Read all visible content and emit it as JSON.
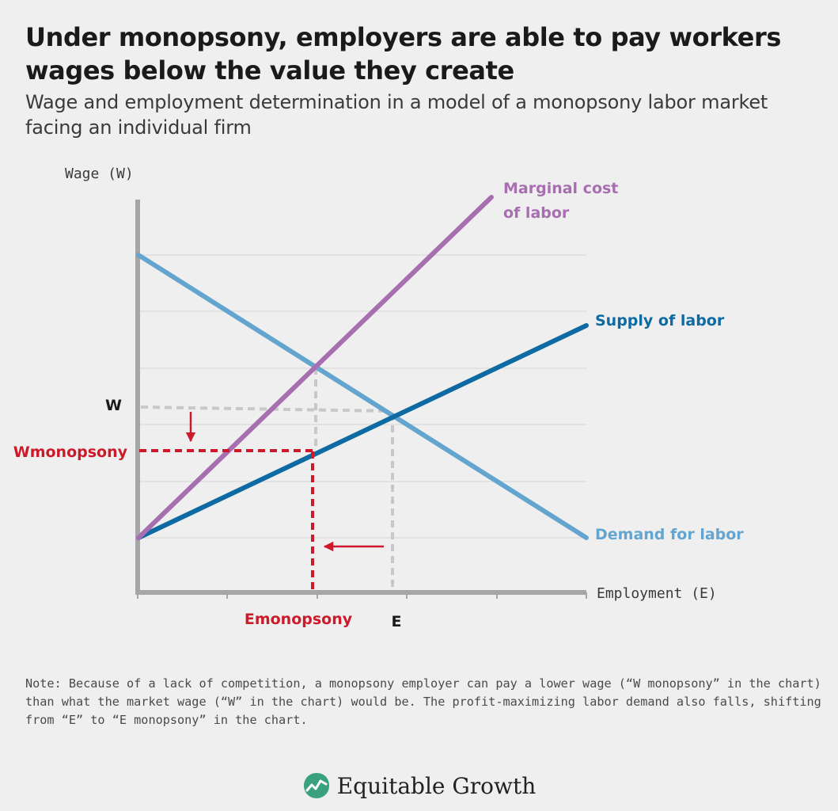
{
  "header": {
    "title": "Under monopsony, employers are able to pay workers wages below the value they create",
    "subtitle": "Wage and employment determination in a model of a monopsony labor market facing an individual firm"
  },
  "diagram": {
    "y_axis_label": "Wage (W)",
    "x_axis_label": "Employment (E)",
    "curves": {
      "marginal_cost": {
        "label_line1": "Marginal cost",
        "label_line2": "of labor",
        "color": "#a76fb0"
      },
      "supply": {
        "label": "Supply of labor",
        "color": "#0e6aa2"
      },
      "demand": {
        "label": "Demand for labor",
        "color": "#63a5cf"
      }
    },
    "markers": {
      "w": "W",
      "w_monopsony": "Wmonopsony",
      "e": "E",
      "e_monopsony": "Emonopsony"
    },
    "colors": {
      "axis": "#a6a6a6",
      "grid": "#dadada",
      "competitive_guides": "#c8c8c8",
      "monopsony": "#cc1a2b"
    }
  },
  "footer": {
    "note": "Note: Because of a lack of competition, a monopsony employer can pay a lower wage (“W monopsony” in the chart) than what the market wage (“W” in the chart) would be. The profit-maximizing labor demand also falls, shifting from “E” to “E monopsony” in the chart.",
    "brand": "Equitable Growth",
    "brand_logo": "equitable-growth-leaf-logo",
    "brand_color": "#3aa17e"
  }
}
